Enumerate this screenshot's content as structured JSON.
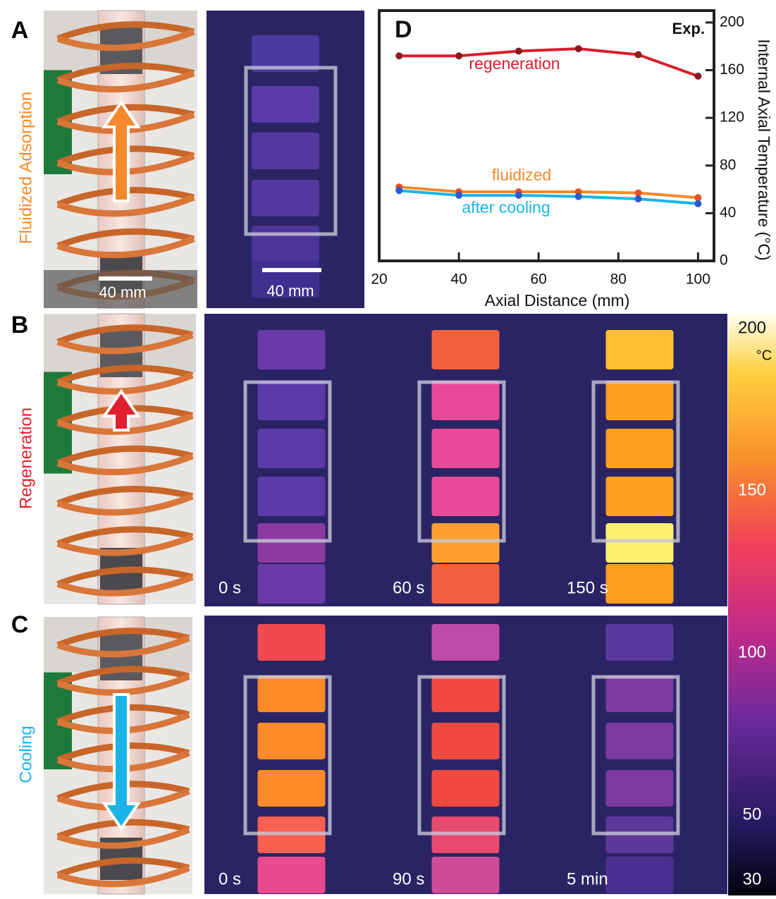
{
  "panels": {
    "A": {
      "label": "A",
      "side_label": "Fluidized Adsorption",
      "scale_bars": [
        "40 mm",
        "40 mm"
      ]
    },
    "B": {
      "label": "B",
      "side_label": "Regeneration",
      "times": [
        "0 s",
        "60 s",
        "150 s"
      ]
    },
    "C": {
      "label": "C",
      "side_label": "Cooling",
      "times": [
        "0 s",
        "90 s",
        "5 min"
      ]
    }
  },
  "colorbar": {
    "lim": [
      30,
      200
    ],
    "ticks": [
      200,
      150,
      100,
      50,
      30
    ],
    "unit": "°C"
  },
  "chart_data": {
    "type": "line",
    "label": "D",
    "annotation": "Exp.",
    "x_label": "Axial Distance (mm)",
    "y_label": "Internal Axial Temperature (°C)",
    "x": [
      25,
      40,
      55,
      70,
      85,
      100
    ],
    "series": [
      {
        "name": "regeneration",
        "color": "#d81e2c",
        "marker_color": "#8a1a1e",
        "values": [
          172,
          172,
          176,
          178,
          173,
          155
        ]
      },
      {
        "name": "fluidized",
        "color": "#f5892c",
        "marker_color": "#e8501e",
        "values": [
          62,
          58,
          58,
          58,
          57,
          53
        ]
      },
      {
        "name": "after cooling",
        "color": "#1cb4e8",
        "marker_color": "#2a5bd0",
        "values": [
          59,
          55,
          55,
          54,
          52,
          48
        ]
      }
    ],
    "xlim": [
      20,
      104
    ],
    "xticks": [
      20,
      40,
      60,
      80,
      100
    ],
    "ylim": [
      0,
      210
    ],
    "yticks": [
      0,
      40,
      80,
      120,
      160,
      200
    ],
    "y_axis_side": "right"
  }
}
